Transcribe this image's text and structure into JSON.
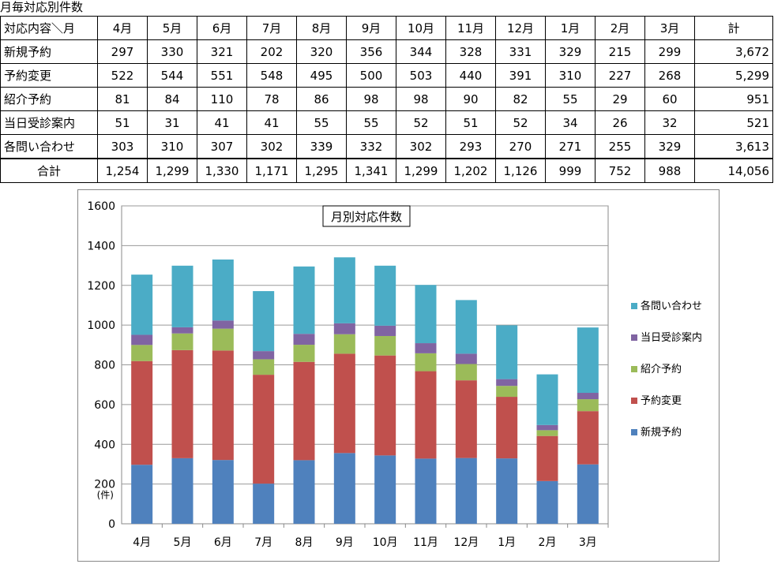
{
  "table": {
    "caption": "月毎対応別件数",
    "header_label": "対応内容＼月",
    "months": [
      "4月",
      "5月",
      "6月",
      "7月",
      "8月",
      "9月",
      "10月",
      "11月",
      "12月",
      "1月",
      "2月",
      "3月"
    ],
    "total_header": "計",
    "rows": [
      {
        "label": "新規予約",
        "values": [
          "297",
          "330",
          "321",
          "202",
          "320",
          "356",
          "344",
          "328",
          "331",
          "329",
          "215",
          "299"
        ],
        "total": "3,672"
      },
      {
        "label": "予約変更",
        "values": [
          "522",
          "544",
          "551",
          "548",
          "495",
          "500",
          "503",
          "440",
          "391",
          "310",
          "227",
          "268"
        ],
        "total": "5,299"
      },
      {
        "label": "紹介予約",
        "values": [
          "81",
          "84",
          "110",
          "78",
          "86",
          "98",
          "98",
          "90",
          "82",
          "55",
          "29",
          "60"
        ],
        "total": "951"
      },
      {
        "label": "当日受診案内",
        "values": [
          "51",
          "31",
          "41",
          "41",
          "55",
          "55",
          "52",
          "51",
          "52",
          "34",
          "26",
          "32"
        ],
        "total": "521"
      },
      {
        "label": "各問い合わせ",
        "values": [
          "303",
          "310",
          "307",
          "302",
          "339",
          "332",
          "302",
          "293",
          "270",
          "271",
          "255",
          "329"
        ],
        "total": "3,613"
      }
    ],
    "sum_row": {
      "label": "合計",
      "values": [
        "1,254",
        "1,299",
        "1,330",
        "1,171",
        "1,295",
        "1,341",
        "1,299",
        "1,202",
        "1,126",
        "999",
        "752",
        "988"
      ],
      "total": "14,056"
    }
  },
  "chart_data": {
    "type": "bar",
    "stacked": true,
    "title": "月別対応件数",
    "ylabel": "(件)",
    "ylim": [
      0,
      1600
    ],
    "ytick_step": 200,
    "grid": true,
    "legend_position": "right",
    "categories": [
      "4月",
      "5月",
      "6月",
      "7月",
      "8月",
      "9月",
      "10月",
      "11月",
      "12月",
      "1月",
      "2月",
      "3月"
    ],
    "series": [
      {
        "name": "新規予約",
        "color": "#4F81BD",
        "values": [
          297,
          330,
          321,
          202,
          320,
          356,
          344,
          328,
          331,
          329,
          215,
          299
        ]
      },
      {
        "name": "予約変更",
        "color": "#C0504D",
        "values": [
          522,
          544,
          551,
          548,
          495,
          500,
          503,
          440,
          391,
          310,
          227,
          268
        ]
      },
      {
        "name": "紹介予約",
        "color": "#9BBB59",
        "values": [
          81,
          84,
          110,
          78,
          86,
          98,
          98,
          90,
          82,
          55,
          29,
          60
        ]
      },
      {
        "name": "当日受診案内",
        "color": "#8064A2",
        "values": [
          51,
          31,
          41,
          41,
          55,
          55,
          52,
          51,
          52,
          34,
          26,
          32
        ]
      },
      {
        "name": "各問い合わせ",
        "color": "#4BACC6",
        "values": [
          303,
          310,
          307,
          302,
          339,
          332,
          302,
          293,
          270,
          271,
          255,
          329
        ]
      }
    ]
  }
}
